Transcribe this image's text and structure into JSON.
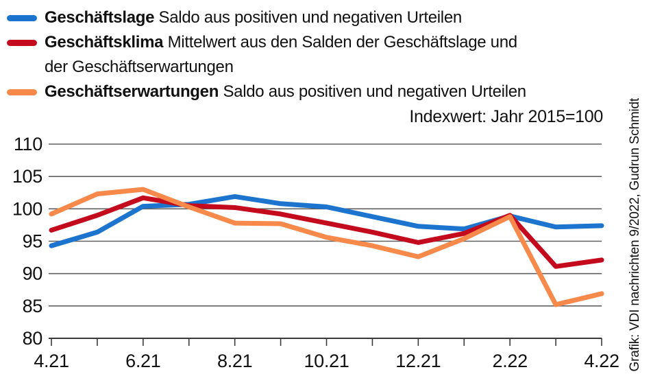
{
  "legend": {
    "items": [
      {
        "name": "Geschäftslage",
        "desc": "Saldo aus positiven und negativen Urteilen",
        "desc2": "",
        "color": "#1c74cf"
      },
      {
        "name": "Geschäftsklima",
        "desc": "Mittelwert aus den Salden der Geschäftslage und",
        "desc2": "der Geschäftserwartungen",
        "color": "#c30b1d"
      },
      {
        "name": "Geschäftserwartungen",
        "desc": "Saldo aus positiven und negativen Urteilen",
        "desc2": "",
        "color": "#f7894a"
      }
    ]
  },
  "annotation": {
    "index_note": "Indexwert: Jahr 2015=100"
  },
  "credit": "Grafik: VDI nachrichten 9/2022, Gudrun Schmidt",
  "chart_data": {
    "type": "line",
    "title": "",
    "x": [
      "4.21",
      "5.21",
      "6.21",
      "7.21",
      "8.21",
      "9.21",
      "10.21",
      "11.21",
      "12.21",
      "1.22",
      "2.22",
      "3.22",
      "4.22"
    ],
    "x_labels_shown": [
      "4.21",
      "6.21",
      "8.21",
      "10.21",
      "12.21",
      "2.22",
      "4.22"
    ],
    "ylim": [
      80,
      110
    ],
    "yticks": [
      80,
      85,
      90,
      95,
      100,
      105,
      110
    ],
    "grid": true,
    "legend_position": "top-left",
    "note": "Indexwert: Jahr 2015=100",
    "grid_color": "#606060",
    "axis_color": "#3a3a3a",
    "series": [
      {
        "name": "Geschäftslage",
        "color": "#1c74cf",
        "values": [
          94.3,
          96.4,
          100.4,
          100.7,
          101.9,
          100.8,
          100.3,
          98.8,
          97.3,
          96.9,
          98.9,
          97.2,
          97.4
        ]
      },
      {
        "name": "Geschäftsklima",
        "color": "#c30b1d",
        "values": [
          96.7,
          99.0,
          101.7,
          100.5,
          100.2,
          99.2,
          97.8,
          96.4,
          94.8,
          96.2,
          99.0,
          91.1,
          92.1
        ]
      },
      {
        "name": "Geschäftserwartungen",
        "color": "#f7894a",
        "values": [
          99.2,
          102.3,
          103.0,
          100.3,
          97.8,
          97.7,
          95.6,
          94.3,
          92.6,
          95.4,
          98.8,
          85.2,
          86.9
        ]
      }
    ]
  }
}
